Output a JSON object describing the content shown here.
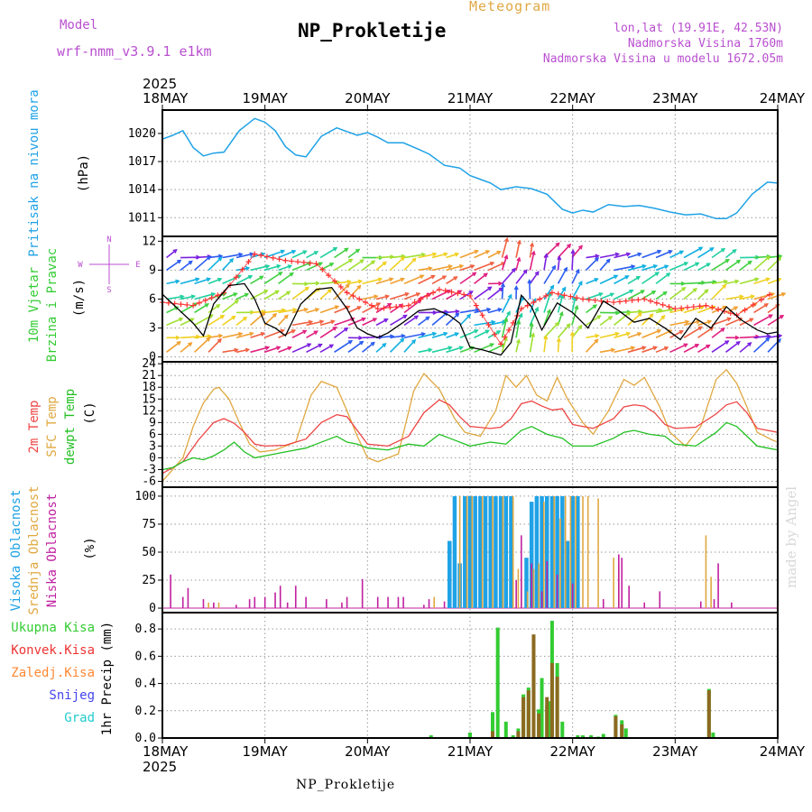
{
  "header": {
    "model_label": "Model",
    "model_name": "wrf-nmm_v3.9.1 e1km",
    "title": "NP_Prokletije",
    "meteogram": "Meteogram",
    "coords": "lon,lat (19.91E, 42.53N)",
    "altitude": "Nadmorska Visina 1760m",
    "model_altitude": "Nadmorska Visina u modelu 1672.05m"
  },
  "footer": {
    "station": "NP_Prokletije",
    "credit": "made by Angel"
  },
  "colors": {
    "pressure": "#1fa2e6",
    "wind_speed": "#000000",
    "wind_dir": "#ff3030",
    "t2m": "#ee4444",
    "sfc": "#e0a840",
    "dewpt": "#22c022",
    "high_cloud": "#1fa2e6",
    "mid_cloud": "#e0a840",
    "low_cloud": "#c020a0",
    "total_precip": "#33cc33",
    "conv_precip": "#ee3333",
    "frozen": "#ff8833",
    "snow": "#4444ee",
    "hail": "#22cccc",
    "precip_overlap": "#8c6a20",
    "header": "#b94fd0"
  },
  "chart_data": [
    {
      "type": "line",
      "id": "pressure",
      "ylabel": [
        "Pritisak na nivou mora",
        "(hPa)"
      ],
      "ylim": [
        1009,
        1022.5
      ],
      "yticks": [
        1011,
        1014,
        1017,
        1020
      ],
      "x_dates": [
        "18MAY",
        "19MAY",
        "20MAY",
        "21MAY",
        "22MAY",
        "23MAY",
        "24MAY"
      ],
      "year": "2025",
      "series": [
        {
          "x": [
            0,
            0.1,
            0.2,
            0.3,
            0.4,
            0.5,
            0.6,
            0.75,
            0.9,
            1.0,
            1.1,
            1.2,
            1.3,
            1.4,
            1.55,
            1.7,
            1.8,
            1.9,
            2.0,
            2.1,
            2.2,
            2.35,
            2.5,
            2.6,
            2.75,
            2.9,
            3.0,
            3.1,
            3.2,
            3.3,
            3.45,
            3.6,
            3.75,
            3.9,
            4.0,
            4.1,
            4.2,
            4.35,
            4.5,
            4.65,
            4.8,
            4.95,
            5.1,
            5.25,
            5.4,
            5.5,
            5.6,
            5.75,
            5.9,
            6.0
          ],
          "values": [
            1019.4,
            1019.8,
            1020.3,
            1018.5,
            1017.6,
            1017.9,
            1018.0,
            1020.3,
            1021.6,
            1021.2,
            1020.3,
            1018.6,
            1017.7,
            1017.5,
            1019.7,
            1020.6,
            1020.2,
            1019.8,
            1020.1,
            1019.6,
            1019.0,
            1019.0,
            1018.3,
            1017.8,
            1016.6,
            1016.3,
            1015.5,
            1015.1,
            1014.7,
            1014.0,
            1014.3,
            1014.1,
            1013.5,
            1011.9,
            1011.5,
            1011.8,
            1011.6,
            1012.4,
            1012.2,
            1012.3,
            1012.0,
            1011.6,
            1011.3,
            1011.4,
            1010.9,
            1010.9,
            1011.5,
            1013.5,
            1014.8,
            1014.7
          ]
        }
      ]
    },
    {
      "type": "line",
      "id": "wind",
      "ylabel": [
        "10m Vjetar",
        "Brzina i Pravac",
        "(m/s)"
      ],
      "compass": {
        "n": "N",
        "e": "E",
        "w": "W",
        "s": "S"
      },
      "ylim": [
        -0.5,
        12.5
      ],
      "yticks": [
        0,
        3,
        6,
        9,
        12
      ],
      "speed": {
        "x": [
          0,
          0.15,
          0.3,
          0.4,
          0.5,
          0.65,
          0.8,
          0.9,
          1.0,
          1.1,
          1.2,
          1.35,
          1.5,
          1.65,
          1.8,
          1.9,
          2.0,
          2.1,
          2.2,
          2.35,
          2.5,
          2.65,
          2.8,
          2.9,
          3.0,
          3.1,
          3.2,
          3.3,
          3.4,
          3.5,
          3.6,
          3.7,
          3.85,
          4.0,
          4.15,
          4.3,
          4.45,
          4.6,
          4.75,
          4.9,
          5.05,
          5.2,
          5.35,
          5.5,
          5.65,
          5.8,
          5.9,
          6.0
        ],
        "values": [
          6.5,
          5.0,
          3.5,
          2.2,
          5.5,
          7.4,
          7.6,
          6.0,
          3.5,
          3.0,
          2.2,
          5.5,
          7.0,
          7.2,
          5.0,
          3.0,
          2.4,
          2.0,
          2.5,
          3.6,
          4.8,
          5.0,
          4.3,
          3.5,
          1.0,
          0.8,
          0.5,
          0.2,
          1.5,
          6.4,
          5.2,
          2.8,
          5.6,
          4.6,
          3.0,
          5.8,
          4.8,
          3.6,
          4.0,
          3.0,
          1.8,
          4.0,
          3.0,
          5.2,
          3.8,
          2.8,
          2.4,
          2.6
        ]
      },
      "direction_deg": {
        "x": [
          0,
          0.3,
          0.6,
          0.9,
          1.2,
          1.5,
          1.8,
          2.1,
          2.4,
          2.7,
          3.0,
          3.3,
          3.5,
          3.8,
          4.1,
          4.4,
          4.7,
          5.0,
          5.3,
          5.6,
          6.0
        ],
        "values": [
          170,
          160,
          200,
          320,
          300,
          290,
          200,
          150,
          160,
          210,
          190,
          40,
          150,
          200,
          180,
          170,
          180,
          150,
          160,
          130,
          210
        ]
      }
    },
    {
      "type": "line",
      "id": "temperature",
      "ylabel": [
        "2m Temp",
        "SFC Temp",
        "dewpt Temp",
        "(C)"
      ],
      "ylim": [
        -7.5,
        24.5
      ],
      "yticks": [
        -6,
        -3,
        0,
        3,
        6,
        9,
        12,
        15,
        18,
        21,
        24
      ],
      "series": [
        {
          "name": "2m Temp",
          "x": [
            0,
            0.2,
            0.35,
            0.5,
            0.6,
            0.7,
            0.8,
            0.9,
            1.0,
            1.2,
            1.4,
            1.55,
            1.7,
            1.8,
            1.9,
            2.0,
            2.2,
            2.4,
            2.55,
            2.7,
            2.8,
            2.9,
            3.0,
            3.2,
            3.3,
            3.4,
            3.5,
            3.6,
            3.7,
            3.8,
            3.9,
            4.0,
            4.2,
            4.4,
            4.5,
            4.6,
            4.7,
            4.8,
            4.9,
            5.0,
            5.2,
            5.4,
            5.5,
            5.6,
            5.7,
            5.8,
            6.0
          ],
          "values": [
            -4.0,
            -1.0,
            4.5,
            9.0,
            10.0,
            8.8,
            6.5,
            3.5,
            3.0,
            3.2,
            4.8,
            9.0,
            11.0,
            10.5,
            7.0,
            3.5,
            3.0,
            5.5,
            11.5,
            14.8,
            13.5,
            10.5,
            8.0,
            7.5,
            7.8,
            10.0,
            13.8,
            14.5,
            13.2,
            12.2,
            12.5,
            8.5,
            7.5,
            10.0,
            13.0,
            13.5,
            13.2,
            11.5,
            8.5,
            7.5,
            7.8,
            11.2,
            13.5,
            14.3,
            11.5,
            7.5,
            6.5
          ]
        },
        {
          "name": "SFC Temp",
          "x": [
            0,
            0.2,
            0.3,
            0.4,
            0.5,
            0.55,
            0.65,
            0.75,
            0.85,
            0.95,
            1.1,
            1.3,
            1.45,
            1.55,
            1.7,
            1.8,
            1.9,
            2.0,
            2.1,
            2.3,
            2.45,
            2.55,
            2.7,
            2.85,
            2.95,
            3.1,
            3.25,
            3.35,
            3.45,
            3.55,
            3.65,
            3.75,
            3.85,
            3.95,
            4.1,
            4.2,
            4.35,
            4.5,
            4.6,
            4.7,
            4.85,
            4.95,
            5.1,
            5.25,
            5.4,
            5.5,
            5.6,
            5.7,
            5.8,
            5.95,
            6.0
          ],
          "values": [
            -6.0,
            0.0,
            8.0,
            14.0,
            17.5,
            18.0,
            15.0,
            9.0,
            3.5,
            1.5,
            2.0,
            4.0,
            16.0,
            19.5,
            18.0,
            12.0,
            5.5,
            0.0,
            -1.0,
            1.0,
            17.0,
            21.5,
            17.5,
            10.0,
            6.5,
            5.5,
            12.0,
            21.0,
            18.0,
            21.0,
            16.0,
            14.5,
            20.5,
            15.0,
            9.0,
            6.0,
            12.0,
            20.0,
            18.5,
            20.5,
            13.0,
            6.5,
            3.0,
            8.0,
            20.0,
            22.5,
            19.0,
            13.0,
            6.5,
            4.5,
            4.0
          ]
        },
        {
          "name": "dewpt Temp",
          "x": [
            0,
            0.1,
            0.2,
            0.3,
            0.4,
            0.5,
            0.6,
            0.7,
            0.8,
            0.9,
            1.0,
            1.2,
            1.4,
            1.55,
            1.7,
            1.8,
            1.9,
            2.0,
            2.2,
            2.4,
            2.55,
            2.7,
            2.8,
            3.0,
            3.2,
            3.35,
            3.5,
            3.6,
            3.75,
            3.9,
            4.0,
            4.2,
            4.4,
            4.5,
            4.6,
            4.75,
            4.9,
            5.0,
            5.2,
            5.4,
            5.5,
            5.6,
            5.7,
            5.8,
            5.9,
            6.0
          ],
          "values": [
            -3.0,
            -2.5,
            -1.0,
            0.0,
            -0.5,
            0.5,
            2.0,
            4.0,
            1.5,
            0.0,
            0.5,
            1.5,
            2.5,
            4.0,
            5.5,
            4.0,
            3.5,
            2.5,
            2.0,
            3.5,
            3.0,
            6.0,
            5.0,
            3.0,
            4.0,
            3.5,
            7.0,
            8.0,
            6.0,
            5.0,
            3.0,
            3.0,
            5.0,
            6.5,
            7.0,
            6.0,
            5.5,
            3.5,
            3.0,
            6.5,
            9.0,
            8.0,
            5.5,
            3.0,
            2.5,
            2.0
          ]
        }
      ]
    },
    {
      "type": "bar",
      "id": "clouds",
      "ylabel": [
        "Visoka Oblacnost",
        "Srednja Oblacnost",
        "Niska Oblacnost",
        "(%)"
      ],
      "ylim": [
        -4,
        108
      ],
      "yticks": [
        0,
        25,
        50,
        75,
        100
      ],
      "series": [
        {
          "name": "Visoka Oblacnost",
          "x": [
            2.8,
            2.85,
            2.9,
            2.95,
            3.0,
            3.05,
            3.1,
            3.15,
            3.2,
            3.25,
            3.3,
            3.35,
            3.4,
            3.55,
            3.6,
            3.65,
            3.7,
            3.75,
            3.8,
            3.85,
            3.9,
            3.95,
            4.0,
            4.05
          ],
          "values": [
            60,
            100,
            40,
            100,
            100,
            100,
            100,
            100,
            100,
            100,
            100,
            100,
            100,
            45,
            95,
            100,
            100,
            100,
            100,
            100,
            100,
            60,
            100,
            100
          ]
        },
        {
          "name": "Srednja Oblacnost",
          "x": [
            0.45,
            0.5,
            0.55,
            2.65,
            2.9,
            2.97,
            3.02,
            3.12,
            3.22,
            3.32,
            3.42,
            3.47,
            3.5,
            3.56,
            3.62,
            3.67,
            3.72,
            3.82,
            3.88,
            3.93,
            3.98,
            4.03,
            4.1,
            4.15,
            4.25,
            4.4,
            4.45,
            5.3,
            5.35
          ],
          "values": [
            5,
            4,
            5,
            10,
            100,
            100,
            100,
            100,
            100,
            100,
            100,
            35,
            28,
            15,
            35,
            40,
            95,
            100,
            80,
            100,
            100,
            100,
            100,
            100,
            98,
            45,
            38,
            65,
            28
          ]
        },
        {
          "name": "Niska Oblacnost",
          "x": [
            0.08,
            0.2,
            0.25,
            0.4,
            0.5,
            0.72,
            0.85,
            0.9,
            1.0,
            1.1,
            1.15,
            1.22,
            1.3,
            1.4,
            1.6,
            1.75,
            1.8,
            1.95,
            2.1,
            2.2,
            2.3,
            2.35,
            2.55,
            2.6,
            2.75,
            3.45,
            3.5,
            3.6,
            3.7,
            3.75,
            3.85,
            4.0,
            4.3,
            4.45,
            4.48,
            4.55,
            4.7,
            4.85,
            5.25,
            5.38,
            5.42,
            5.55
          ],
          "values": [
            30,
            10,
            18,
            8,
            5,
            3,
            8,
            10,
            10,
            14,
            20,
            5,
            20,
            10,
            8,
            5,
            10,
            26,
            10,
            10,
            10,
            10,
            3,
            8,
            6,
            25,
            65,
            40,
            15,
            42,
            30,
            22,
            8,
            48,
            45,
            20,
            5,
            15,
            6,
            8,
            40,
            5
          ]
        }
      ]
    },
    {
      "type": "bar",
      "id": "precip",
      "ylabel": [
        "Ukupna Kisa",
        "Konvek.Kisa",
        "Zaledj.Kisa",
        "Snijeg",
        "Grad",
        "1hr Precip (mm)"
      ],
      "ylim": [
        0,
        0.92
      ],
      "yticks": [
        0.0,
        0.2,
        0.4,
        0.6,
        0.8
      ],
      "series": [
        {
          "name": "Ukupna Kisa",
          "x": [
            2.62,
            3.0,
            3.22,
            3.27,
            3.35,
            3.42,
            3.47,
            3.52,
            3.57,
            3.62,
            3.67,
            3.7,
            3.75,
            3.77,
            3.8,
            3.85,
            3.9,
            4.05,
            4.1,
            4.18,
            4.25,
            4.3,
            4.42,
            4.48,
            4.52,
            5.33,
            5.37
          ],
          "values": [
            0.02,
            0.04,
            0.19,
            0.81,
            0.12,
            0.02,
            0.07,
            0.32,
            0.37,
            0.57,
            0.21,
            0.44,
            0.24,
            0.27,
            0.86,
            0.55,
            0.12,
            0.02,
            0.02,
            0.02,
            0.01,
            0.03,
            0.17,
            0.13,
            0.07,
            0.36,
            0.04
          ]
        },
        {
          "name": "Konvek.Kisa",
          "x": [
            3.22,
            3.47,
            3.52,
            3.57,
            3.62,
            3.67,
            3.75,
            3.8,
            3.85,
            4.42,
            4.48,
            5.33
          ],
          "values": [
            0.05,
            0.05,
            0.3,
            0.35,
            0.76,
            0.18,
            0.3,
            0.55,
            0.45,
            0.16,
            0.1,
            0.35
          ]
        }
      ]
    }
  ]
}
